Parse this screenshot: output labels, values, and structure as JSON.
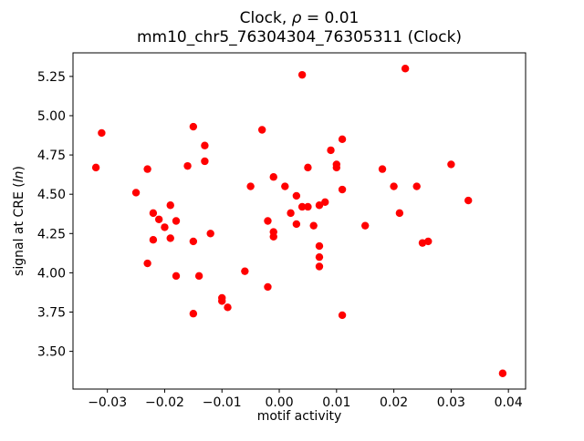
{
  "chart_data": {
    "type": "scatter",
    "title": "Clock, ρ = 0.01\nmm10_chr5_76304304_76305311 (Clock)",
    "title_line1_parts": [
      "Clock, ",
      "ρ",
      " = 0.01"
    ],
    "title_line2": "mm10_chr5_76304304_76305311 (Clock)",
    "xlabel": "motif activity",
    "ylabel": "signal at CRE (ln)",
    "ylabel_parts": [
      "signal at CRE (",
      "ln",
      ")"
    ],
    "marker_color": "#ff0000",
    "legend": "none",
    "grid": false,
    "xlim": [
      -0.036,
      0.043
    ],
    "ylim": [
      3.26,
      5.4
    ],
    "x_ticks": {
      "values": [
        -0.03,
        -0.02,
        -0.01,
        0.0,
        0.01,
        0.02,
        0.03,
        0.04
      ],
      "labels": [
        "−0.03",
        "−0.02",
        "−0.01",
        "0.00",
        "0.01",
        "0.02",
        "0.03",
        "0.04"
      ]
    },
    "y_ticks": {
      "values": [
        3.5,
        3.75,
        4.0,
        4.25,
        4.5,
        4.75,
        5.0,
        5.25
      ],
      "labels": [
        "3.50",
        "3.75",
        "4.00",
        "4.25",
        "4.50",
        "4.75",
        "5.00",
        "5.25"
      ]
    },
    "points": [
      [
        -0.032,
        4.67
      ],
      [
        -0.031,
        4.89
      ],
      [
        -0.025,
        4.51
      ],
      [
        -0.023,
        4.66
      ],
      [
        -0.023,
        4.06
      ],
      [
        -0.022,
        4.38
      ],
      [
        -0.022,
        4.21
      ],
      [
        -0.021,
        4.34
      ],
      [
        -0.02,
        4.29
      ],
      [
        -0.019,
        4.43
      ],
      [
        -0.019,
        4.22
      ],
      [
        -0.018,
        4.33
      ],
      [
        -0.018,
        3.98
      ],
      [
        -0.016,
        4.68
      ],
      [
        -0.015,
        4.93
      ],
      [
        -0.015,
        4.2
      ],
      [
        -0.015,
        3.74
      ],
      [
        -0.014,
        3.98
      ],
      [
        -0.013,
        4.81
      ],
      [
        -0.013,
        4.71
      ],
      [
        -0.012,
        4.25
      ],
      [
        -0.01,
        3.84
      ],
      [
        -0.01,
        3.82
      ],
      [
        -0.009,
        3.78
      ],
      [
        -0.006,
        4.01
      ],
      [
        -0.005,
        4.55
      ],
      [
        -0.003,
        4.91
      ],
      [
        -0.002,
        4.33
      ],
      [
        -0.002,
        3.91
      ],
      [
        -0.001,
        4.61
      ],
      [
        -0.001,
        4.26
      ],
      [
        -0.001,
        4.23
      ],
      [
        0.001,
        4.55
      ],
      [
        0.002,
        4.38
      ],
      [
        0.003,
        4.49
      ],
      [
        0.003,
        4.31
      ],
      [
        0.004,
        5.26
      ],
      [
        0.004,
        4.42
      ],
      [
        0.005,
        4.67
      ],
      [
        0.005,
        4.42
      ],
      [
        0.006,
        4.3
      ],
      [
        0.007,
        4.43
      ],
      [
        0.007,
        4.17
      ],
      [
        0.007,
        4.1
      ],
      [
        0.007,
        4.04
      ],
      [
        0.008,
        4.45
      ],
      [
        0.009,
        4.78
      ],
      [
        0.01,
        4.69
      ],
      [
        0.01,
        4.67
      ],
      [
        0.011,
        4.85
      ],
      [
        0.011,
        4.53
      ],
      [
        0.011,
        3.73
      ],
      [
        0.015,
        4.3
      ],
      [
        0.018,
        4.66
      ],
      [
        0.02,
        4.55
      ],
      [
        0.021,
        4.38
      ],
      [
        0.022,
        5.3
      ],
      [
        0.024,
        4.55
      ],
      [
        0.025,
        4.19
      ],
      [
        0.026,
        4.2
      ],
      [
        0.03,
        4.69
      ],
      [
        0.033,
        4.46
      ],
      [
        0.039,
        3.36
      ]
    ]
  }
}
